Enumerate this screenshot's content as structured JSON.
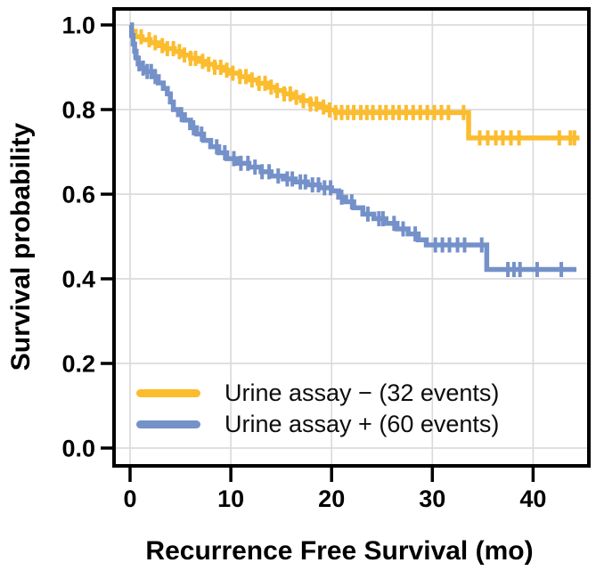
{
  "figure": {
    "y_axis": {
      "title": "Survival probability",
      "ticks": [
        {
          "label": "1.0",
          "value": 1.0
        },
        {
          "label": "0.8",
          "value": 0.8
        },
        {
          "label": "0.6",
          "value": 0.6
        },
        {
          "label": "0.4",
          "value": 0.4
        },
        {
          "label": "0.2",
          "value": 0.2
        },
        {
          "label": "0.0",
          "value": 0.0
        }
      ]
    },
    "x_axis": {
      "title": "Recurrence Free Survival (mo)",
      "ticks": [
        {
          "label": "0",
          "value": 0
        },
        {
          "label": "10",
          "value": 10
        },
        {
          "label": "20",
          "value": 20
        },
        {
          "label": "30",
          "value": 30
        },
        {
          "label": "40",
          "value": 40
        }
      ]
    },
    "legend_items": [
      {
        "label": "Urine assay − (32 events)",
        "color": "#FBBC2E"
      },
      {
        "label": "Urine assay + (60 events)",
        "color": "#7591C9"
      }
    ],
    "colors": {
      "background": "#FFFFFF",
      "grid": "#DBDBDB",
      "axis": "#000000",
      "tick_text": "#000000"
    }
  },
  "chart_data": {
    "type": "line",
    "variant": "kaplan-meier-step",
    "title": "",
    "xlabel": "Recurrence Free Survival (mo)",
    "ylabel": "Survival probability",
    "xlim": [
      0,
      45
    ],
    "ylim": [
      0,
      1
    ],
    "x_ticks": [
      0,
      10,
      20,
      30,
      40
    ],
    "y_ticks": [
      0.0,
      0.2,
      0.4,
      0.6,
      0.8,
      1.0
    ],
    "grid": true,
    "legend_position": "inside-bottom-left",
    "series": [
      {
        "name": "Urine assay − (32 events)",
        "group": "Urine assay −",
        "events": 32,
        "color": "#FBBC2E",
        "end_month": 44.6,
        "steps": [
          [
            0,
            1.0
          ],
          [
            0.15,
            0.985
          ],
          [
            0.5,
            0.972
          ],
          [
            1.2,
            0.965
          ],
          [
            2,
            0.958
          ],
          [
            2.8,
            0.951
          ],
          [
            3.6,
            0.944
          ],
          [
            4.4,
            0.937
          ],
          [
            5.2,
            0.929
          ],
          [
            6,
            0.921
          ],
          [
            6.8,
            0.914
          ],
          [
            7.6,
            0.907
          ],
          [
            8.4,
            0.9
          ],
          [
            9.2,
            0.893
          ],
          [
            10,
            0.886
          ],
          [
            10.9,
            0.878
          ],
          [
            11.8,
            0.87
          ],
          [
            12.7,
            0.862
          ],
          [
            13.6,
            0.853
          ],
          [
            14.5,
            0.845
          ],
          [
            15.3,
            0.837
          ],
          [
            16.1,
            0.829
          ],
          [
            17,
            0.821
          ],
          [
            17.9,
            0.813
          ],
          [
            18.8,
            0.806
          ],
          [
            19.6,
            0.799
          ],
          [
            20.4,
            0.793
          ],
          [
            33.6,
            0.733
          ]
        ],
        "censor_times": [
          0.2,
          1.1,
          1.9,
          2.5,
          3.2,
          3.7,
          4.3,
          4.9,
          5.4,
          6.0,
          6.5,
          7.2,
          7.8,
          8.4,
          9.0,
          9.6,
          10.2,
          10.9,
          11.5,
          12.1,
          12.8,
          13.4,
          14.0,
          14.6,
          15.3,
          15.9,
          16.5,
          17.2,
          17.9,
          18.5,
          19.2,
          19.8,
          20.4,
          21.0,
          21.6,
          22.2,
          22.9,
          23.5,
          24.1,
          24.8,
          25.4,
          26.1,
          26.7,
          27.4,
          28.1,
          28.8,
          29.5,
          30.2,
          30.9,
          31.6,
          33.1,
          34.7,
          35.5,
          36.3,
          37.0,
          37.8,
          38.6,
          42.6,
          43.7,
          44.1
        ]
      },
      {
        "name": "Urine assay + (60 events)",
        "group": "Urine assay +",
        "events": 60,
        "color": "#7591C9",
        "end_month": 44.3,
        "steps": [
          [
            0,
            1.0
          ],
          [
            0.15,
            0.975
          ],
          [
            0.3,
            0.955
          ],
          [
            0.45,
            0.938
          ],
          [
            0.6,
            0.922
          ],
          [
            0.8,
            0.908
          ],
          [
            1,
            0.898
          ],
          [
            1.6,
            0.89
          ],
          [
            2.2,
            0.878
          ],
          [
            2.8,
            0.863
          ],
          [
            3.3,
            0.85
          ],
          [
            3.7,
            0.837
          ],
          [
            4,
            0.818
          ],
          [
            4.3,
            0.8
          ],
          [
            4.8,
            0.788
          ],
          [
            5.4,
            0.775
          ],
          [
            6,
            0.757
          ],
          [
            6.6,
            0.742
          ],
          [
            7.3,
            0.727
          ],
          [
            8,
            0.712
          ],
          [
            8.8,
            0.698
          ],
          [
            9.6,
            0.684
          ],
          [
            10.6,
            0.673
          ],
          [
            11.8,
            0.664
          ],
          [
            13,
            0.653
          ],
          [
            14,
            0.643
          ],
          [
            15.2,
            0.636
          ],
          [
            16.4,
            0.629
          ],
          [
            17.6,
            0.622
          ],
          [
            18.8,
            0.615
          ],
          [
            20,
            0.608
          ],
          [
            20.7,
            0.593
          ],
          [
            21.4,
            0.582
          ],
          [
            22.2,
            0.568
          ],
          [
            23.1,
            0.553
          ],
          [
            24.2,
            0.542
          ],
          [
            25.4,
            0.531
          ],
          [
            26.5,
            0.518
          ],
          [
            27.6,
            0.506
          ],
          [
            28.6,
            0.492
          ],
          [
            29.4,
            0.48
          ],
          [
            35.4,
            0.422
          ]
        ],
        "censor_times": [
          0.5,
          0.9,
          1.3,
          1.7,
          2.1,
          2.5,
          5.1,
          6.3,
          7.1,
          8.6,
          9.4,
          10.3,
          11.0,
          11.7,
          12.4,
          13.1,
          13.8,
          14.7,
          15.6,
          16.1,
          16.9,
          17.4,
          18.1,
          18.7,
          19.3,
          19.9,
          21.0,
          22.0,
          23.6,
          24.7,
          25.1,
          26.2,
          27.1,
          28.3,
          30.3,
          31.0,
          31.7,
          32.5,
          33.2,
          34.9,
          37.5,
          38.1,
          38.7,
          40.4,
          42.8
        ]
      }
    ]
  }
}
